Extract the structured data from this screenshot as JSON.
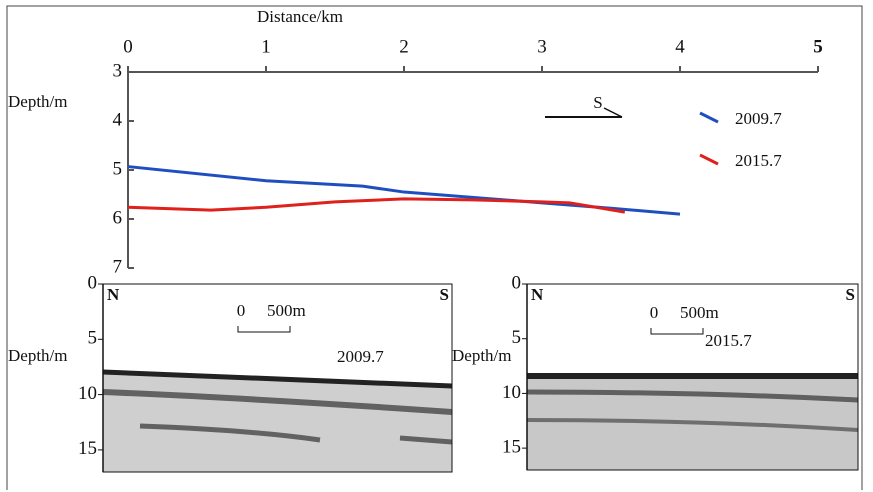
{
  "chart_data": [
    {
      "type": "line",
      "x_label": "Distance/km",
      "y_label": "Depth/m",
      "xlim": [
        0,
        5
      ],
      "xticks": [
        0,
        1,
        2,
        3,
        4,
        5
      ],
      "ylim": [
        3,
        7
      ],
      "yticks": [
        3,
        4,
        5,
        6,
        7
      ],
      "y_inverted": true,
      "annotation": "S",
      "series": [
        {
          "name": "2009.7",
          "color": "#1f4fbf",
          "x": [
            0,
            1,
            1.7,
            2,
            3,
            3.5,
            4
          ],
          "values": [
            4.93,
            5.22,
            5.33,
            5.45,
            5.67,
            5.78,
            5.9
          ]
        },
        {
          "name": "2015.7",
          "color": "#e0201b",
          "x": [
            0,
            0.6,
            1,
            1.5,
            2,
            2.5,
            3,
            3.2,
            3.6
          ],
          "values": [
            5.76,
            5.82,
            5.76,
            5.65,
            5.59,
            5.61,
            5.65,
            5.67,
            5.86
          ]
        }
      ]
    },
    {
      "type": "image",
      "y_label": "Depth/m",
      "ylim": [
        0,
        17
      ],
      "yticks": [
        0,
        5,
        10,
        15
      ],
      "y_inverted": true,
      "left_label": "N",
      "right_label": "S",
      "scale_labels": [
        "0",
        "500m"
      ],
      "annotation": "2009.7"
    },
    {
      "type": "image",
      "y_label": "Depth/m",
      "ylim": [
        0,
        17
      ],
      "yticks": [
        0,
        5,
        10,
        15
      ],
      "y_inverted": true,
      "left_label": "N",
      "right_label": "S",
      "scale_labels": [
        "0",
        "500m"
      ],
      "annotation": "2015.7"
    }
  ]
}
